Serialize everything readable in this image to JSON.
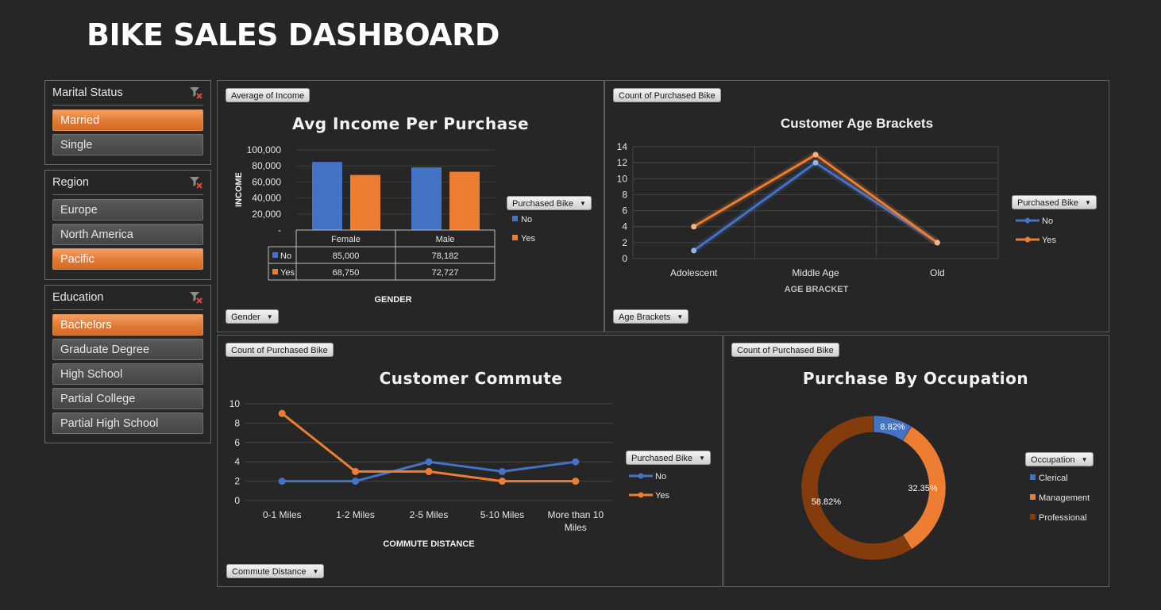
{
  "dashboard": {
    "title": "BIKE SALES DASHBOARD"
  },
  "colors": {
    "no": "#4472c4",
    "yes": "#ed7d31",
    "clerical": "#4472c4",
    "management": "#ed7d31",
    "professional": "#843c0c",
    "slicer_selected": "#e07a35"
  },
  "slicers": {
    "marital": {
      "title": "Marital Status",
      "items": [
        {
          "label": "Married",
          "selected": true
        },
        {
          "label": "Single",
          "selected": false
        }
      ]
    },
    "region": {
      "title": "Region",
      "items": [
        {
          "label": "Europe",
          "selected": false
        },
        {
          "label": "North America",
          "selected": false
        },
        {
          "label": "Pacific",
          "selected": true
        }
      ]
    },
    "education": {
      "title": "Education",
      "items": [
        {
          "label": "Bachelors",
          "selected": true
        },
        {
          "label": "Graduate Degree",
          "selected": false
        },
        {
          "label": "High School",
          "selected": false
        },
        {
          "label": "Partial College",
          "selected": false
        },
        {
          "label": "Partial High School",
          "selected": false
        }
      ]
    }
  },
  "pivot_buttons": {
    "income_value": "Average of Income",
    "income_axis": "Gender",
    "income_legend": "Purchased Bike",
    "age_value": "Count of Purchased Bike",
    "age_axis": "Age Brackets",
    "age_legend": "Purchased Bike",
    "commute_value": "Count of Purchased Bike",
    "commute_axis": "Commute Distance",
    "commute_legend": "Purchased Bike",
    "occupation_value": "Count of Purchased Bike",
    "occupation_legend": "Occupation"
  },
  "chart_data": [
    {
      "id": "income",
      "type": "bar",
      "title": "Avg Income Per Purchase",
      "xlabel": "GENDER",
      "ylabel": "INCOME",
      "categories": [
        "Female",
        "Male"
      ],
      "series": [
        {
          "name": "No",
          "values": [
            85000,
            78182
          ]
        },
        {
          "name": "Yes",
          "values": [
            68750,
            72727
          ]
        }
      ],
      "data_table": [
        [
          "85,000",
          "78,182"
        ],
        [
          "68,750",
          "72,727"
        ]
      ],
      "ylim": [
        0,
        100000
      ],
      "yticks": [
        "-",
        "20,000",
        "40,000",
        "60,000",
        "80,000",
        "100,000"
      ],
      "legend": "right"
    },
    {
      "id": "age",
      "type": "line",
      "title": "Customer Age Brackets",
      "xlabel": "AGE BRACKET",
      "categories": [
        "Adolescent",
        "Middle Age",
        "Old"
      ],
      "series": [
        {
          "name": "No",
          "values": [
            1,
            12,
            2
          ]
        },
        {
          "name": "Yes",
          "values": [
            4,
            13,
            2
          ]
        }
      ],
      "ylim": [
        0,
        14
      ],
      "yticks": [
        "0",
        "2",
        "4",
        "6",
        "8",
        "10",
        "12",
        "14"
      ],
      "grid": true,
      "legend": "right"
    },
    {
      "id": "commute",
      "type": "line",
      "title": "Customer Commute",
      "xlabel": "COMMUTE DISTANCE",
      "categories": [
        "0-1 Miles",
        "1-2 Miles",
        "2-5 Miles",
        "5-10 Miles",
        "More than 10 Miles"
      ],
      "category_lines": [
        [
          "0-1 Miles"
        ],
        [
          "1-2 Miles"
        ],
        [
          "2-5 Miles"
        ],
        [
          "5-10 Miles"
        ],
        [
          "More than 10",
          "Miles"
        ]
      ],
      "series": [
        {
          "name": "No",
          "values": [
            2,
            2,
            4,
            3,
            4
          ]
        },
        {
          "name": "Yes",
          "values": [
            9,
            3,
            3,
            2,
            2
          ]
        }
      ],
      "ylim": [
        0,
        10
      ],
      "yticks": [
        "0",
        "2",
        "4",
        "6",
        "8",
        "10"
      ],
      "grid": true,
      "legend": "right"
    },
    {
      "id": "occupation",
      "type": "pie",
      "title": "Purchase By Occupation",
      "labels": [
        "Clerical",
        "Management",
        "Professional"
      ],
      "values": [
        8.82,
        32.35,
        58.82
      ],
      "value_labels": [
        "8.82%",
        "32.35%",
        "58.82%"
      ],
      "legend": "right"
    }
  ]
}
